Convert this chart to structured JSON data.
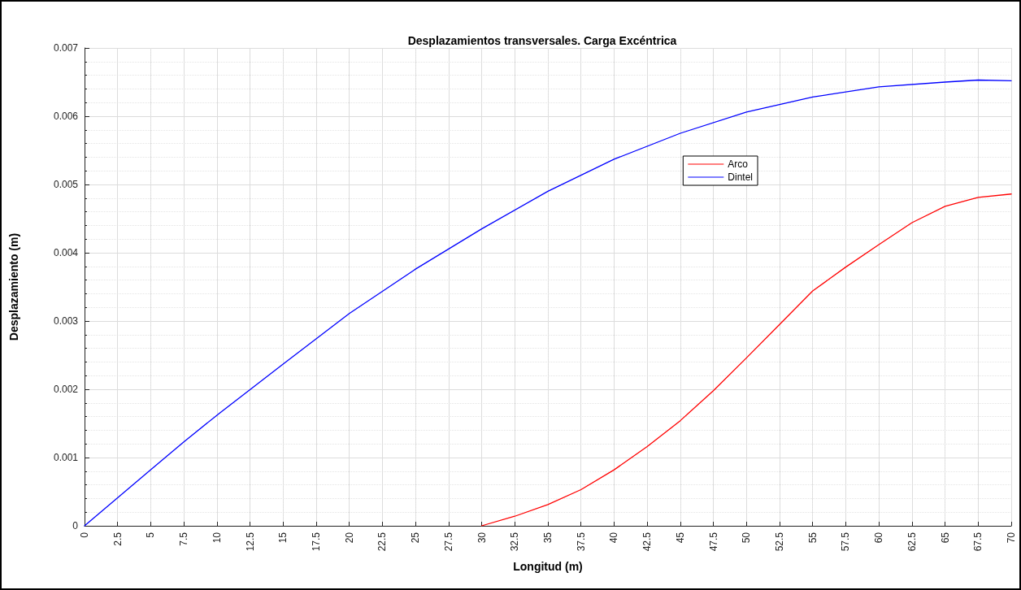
{
  "chart_data": {
    "type": "line",
    "title": "Desplazamientos transversales. Carga Excéntrica",
    "xlabel": "Longitud (m)",
    "ylabel": "Desplazamiento (m)",
    "xlim": [
      0,
      70
    ],
    "xticks": [
      0,
      2.5,
      5,
      7.5,
      10,
      12.5,
      15,
      17.5,
      20,
      22.5,
      25,
      27.5,
      30,
      32.5,
      35,
      37.5,
      40,
      42.5,
      45,
      47.5,
      50,
      52.5,
      55,
      57.5,
      60,
      62.5,
      65,
      67.5,
      70
    ],
    "ylim": [
      0,
      0.007
    ],
    "yticks": [
      0,
      0.001,
      0.002,
      0.003,
      0.004,
      0.005,
      0.006,
      0.007
    ],
    "grid": true,
    "legend": "top right",
    "marker": "none",
    "line_style": "solid",
    "series": [
      {
        "name": "Arco",
        "color": "#ff0000",
        "x": [
          30,
          32.5,
          35,
          37.5,
          40,
          42.5,
          45,
          47.5,
          50,
          52.5,
          55,
          57.5,
          60,
          62.5,
          65,
          67.5,
          70
        ],
        "values": [
          0,
          0.00014,
          0.00031,
          0.00053,
          0.00082,
          0.00116,
          0.00154,
          0.00198,
          0.00246,
          0.00295,
          0.00344,
          0.00379,
          0.00412,
          0.00444,
          0.00468,
          0.00481,
          0.00486
        ]
      },
      {
        "name": "Dintel",
        "color": "#0000ff",
        "x": [
          0,
          5,
          7.5,
          10,
          15,
          20,
          25,
          30,
          35,
          40,
          45,
          50,
          55,
          60,
          65,
          67.5,
          70
        ],
        "values": [
          0,
          0.00082,
          0.00123,
          0.00162,
          0.00237,
          0.00311,
          0.00376,
          0.00435,
          0.0049,
          0.00537,
          0.00575,
          0.00606,
          0.00628,
          0.00643,
          0.0065,
          0.00653,
          0.00652
        ]
      }
    ]
  }
}
